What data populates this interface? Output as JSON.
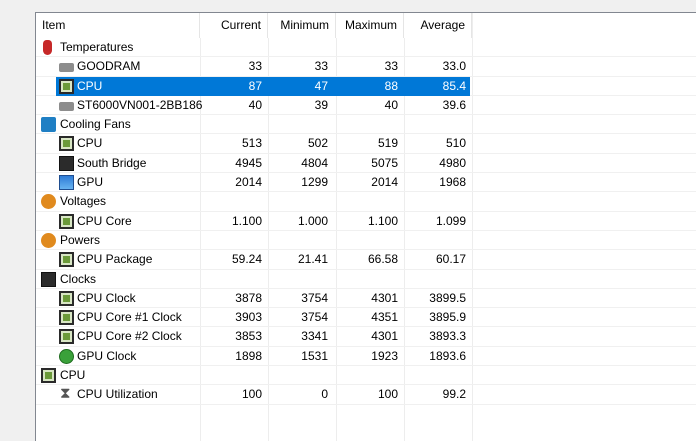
{
  "columns": {
    "item": "Item",
    "current": "Current",
    "minimum": "Minimum",
    "maximum": "Maximum",
    "average": "Average"
  },
  "rows": [
    {
      "type": "category",
      "name": "Temperatures",
      "icon": "thermometer-icon"
    },
    {
      "type": "sensor",
      "name": "GOODRAM",
      "icon": "disk-icon",
      "current": "33",
      "minimum": "33",
      "maximum": "33",
      "average": "33.0"
    },
    {
      "type": "sensor",
      "name": "CPU",
      "icon": "cpu-icon",
      "current": "87",
      "minimum": "47",
      "maximum": "88",
      "average": "85.4",
      "selected": true
    },
    {
      "type": "sensor",
      "name": "ST6000VN001-2BB186",
      "icon": "disk-icon",
      "current": "40",
      "minimum": "39",
      "maximum": "40",
      "average": "39.6"
    },
    {
      "type": "category",
      "name": "Cooling Fans",
      "icon": "fan-icon"
    },
    {
      "type": "sensor",
      "name": "CPU",
      "icon": "cpu-icon",
      "current": "513",
      "minimum": "502",
      "maximum": "519",
      "average": "510"
    },
    {
      "type": "sensor",
      "name": "South Bridge",
      "icon": "motherboard-icon",
      "current": "4945",
      "minimum": "4804",
      "maximum": "5075",
      "average": "4980"
    },
    {
      "type": "sensor",
      "name": "GPU",
      "icon": "gpu-icon",
      "current": "2014",
      "minimum": "1299",
      "maximum": "2014",
      "average": "1968"
    },
    {
      "type": "category",
      "name": "Voltages",
      "icon": "voltage-icon"
    },
    {
      "type": "sensor",
      "name": "CPU Core",
      "icon": "cpu-icon",
      "current": "1.100",
      "minimum": "1.000",
      "maximum": "1.100",
      "average": "1.099"
    },
    {
      "type": "category",
      "name": "Powers",
      "icon": "power-icon"
    },
    {
      "type": "sensor",
      "name": "CPU Package",
      "icon": "cpu-icon",
      "current": "59.24",
      "minimum": "21.41",
      "maximum": "66.58",
      "average": "60.17"
    },
    {
      "type": "category",
      "name": "Clocks",
      "icon": "clock-icon"
    },
    {
      "type": "sensor",
      "name": "CPU Clock",
      "icon": "cpu-icon",
      "current": "3878",
      "minimum": "3754",
      "maximum": "4301",
      "average": "3899.5"
    },
    {
      "type": "sensor",
      "name": "CPU Core #1 Clock",
      "icon": "cpu-icon",
      "current": "3903",
      "minimum": "3754",
      "maximum": "4351",
      "average": "3895.9"
    },
    {
      "type": "sensor",
      "name": "CPU Core #2 Clock",
      "icon": "cpu-icon",
      "current": "3853",
      "minimum": "3341",
      "maximum": "4301",
      "average": "3893.3"
    },
    {
      "type": "sensor",
      "name": "GPU Clock",
      "icon": "xbox-gpu-icon",
      "current": "1898",
      "minimum": "1531",
      "maximum": "1923",
      "average": "1893.6"
    },
    {
      "type": "category",
      "name": "CPU",
      "icon": "cpu-icon"
    },
    {
      "type": "sensor",
      "name": "CPU Utilization",
      "icon": "hourglass-icon",
      "current": "100",
      "minimum": "0",
      "maximum": "100",
      "average": "99.2"
    }
  ],
  "colors": {
    "selection": "#0078d7",
    "background": "#ffffff",
    "window": "#f0f0f0"
  }
}
